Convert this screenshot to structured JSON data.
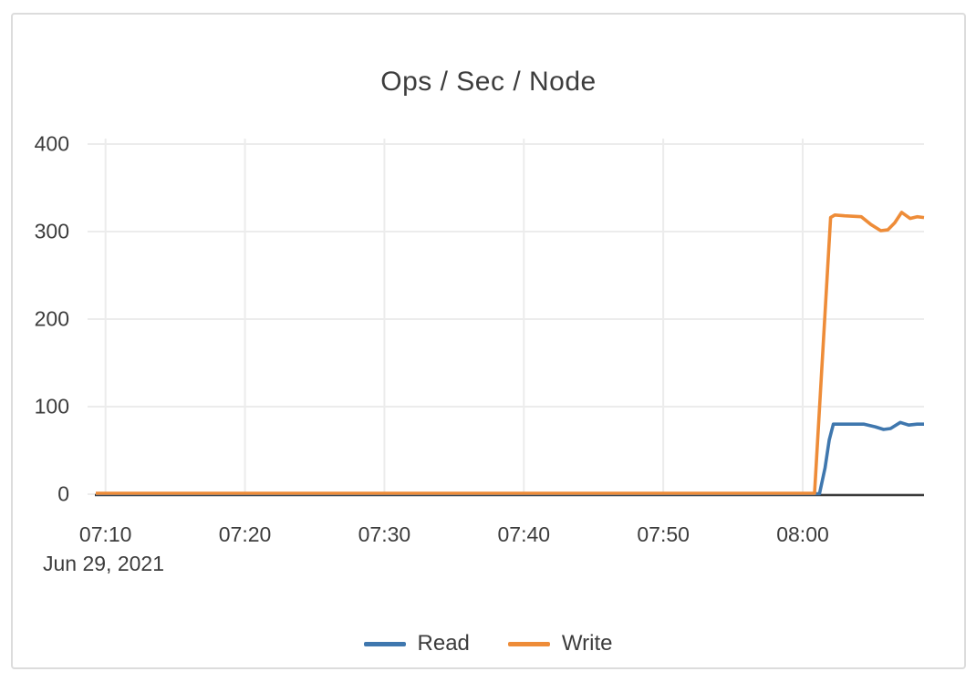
{
  "chart_data": {
    "type": "line",
    "title": "Ops / Sec / Node",
    "x_axis": {
      "unit": "time (minutes after 07:00), Jun 29, 2021",
      "date_label": "Jun 29, 2021",
      "tick_minutes": [
        70,
        80,
        90,
        100,
        110,
        120
      ],
      "tick_labels": [
        "07:10",
        "07:20",
        "07:30",
        "07:40",
        "07:50",
        "08:00"
      ],
      "domain_minutes": [
        69.3,
        128.7
      ]
    },
    "y_axis": {
      "ticks": [
        0,
        100,
        200,
        300,
        400
      ],
      "tick_labels": [
        "0",
        "100",
        "200",
        "300",
        "400"
      ],
      "range": [
        0,
        400
      ]
    },
    "grid": true,
    "legend_position": "bottom",
    "colors": {
      "read": "#3f77ae",
      "write": "#ee8c38",
      "axis_line": "#3a3a3a",
      "grid_line": "#ececec",
      "text": "#3c3c3c"
    },
    "series": [
      {
        "name": "Read",
        "color": "#3f77ae",
        "points": [
          [
            69.3,
            0.5
          ],
          [
            80,
            0.5
          ],
          [
            90,
            0.5
          ],
          [
            100,
            0.5
          ],
          [
            110,
            0.5
          ],
          [
            120,
            0.5
          ],
          [
            121.2,
            0.5
          ],
          [
            121.6,
            30
          ],
          [
            121.9,
            62
          ],
          [
            122.2,
            80
          ],
          [
            123.2,
            80
          ],
          [
            124.4,
            80
          ],
          [
            125.2,
            77
          ],
          [
            125.8,
            74
          ],
          [
            126.3,
            75
          ],
          [
            127.0,
            82
          ],
          [
            127.6,
            79
          ],
          [
            128.2,
            80
          ],
          [
            128.7,
            80
          ]
        ]
      },
      {
        "name": "Write",
        "color": "#ee8c38",
        "points": [
          [
            69.3,
            1
          ],
          [
            80,
            1
          ],
          [
            90,
            1
          ],
          [
            100,
            1
          ],
          [
            110,
            1
          ],
          [
            120,
            1
          ],
          [
            120.85,
            1
          ],
          [
            122.0,
            316
          ],
          [
            122.3,
            319
          ],
          [
            123.0,
            318
          ],
          [
            124.2,
            317
          ],
          [
            124.9,
            308
          ],
          [
            125.6,
            301
          ],
          [
            126.1,
            302
          ],
          [
            126.6,
            310
          ],
          [
            127.1,
            322
          ],
          [
            127.7,
            315
          ],
          [
            128.2,
            317
          ],
          [
            128.7,
            316
          ]
        ]
      }
    ]
  }
}
